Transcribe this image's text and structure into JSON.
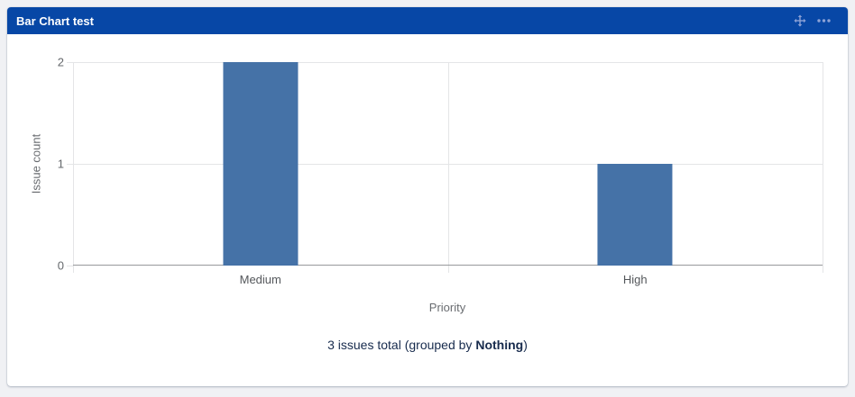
{
  "page": {
    "background": "#F0F1F4"
  },
  "gadget": {
    "title": "Bar Chart test",
    "header_color": "#0747A6",
    "icon_color": "#8CA2D6",
    "icons": [
      {
        "name": "move-icon"
      },
      {
        "name": "more-options-icon"
      }
    ],
    "summary": {
      "text_before": "3 issues total (grouped by ",
      "group_name": "Nothing",
      "text_after": ")"
    }
  },
  "chart_data": {
    "type": "bar",
    "title": "",
    "categories": [
      "Medium",
      "High"
    ],
    "values": [
      2,
      1
    ],
    "xlabel": "Priority",
    "ylabel": "Issue count",
    "ylim": [
      0,
      2
    ],
    "yticks": [
      0,
      1,
      2
    ],
    "bar_color": "#4572A7",
    "bar_width_fraction_of_slot": 0.2,
    "grid": true,
    "legend": false
  }
}
